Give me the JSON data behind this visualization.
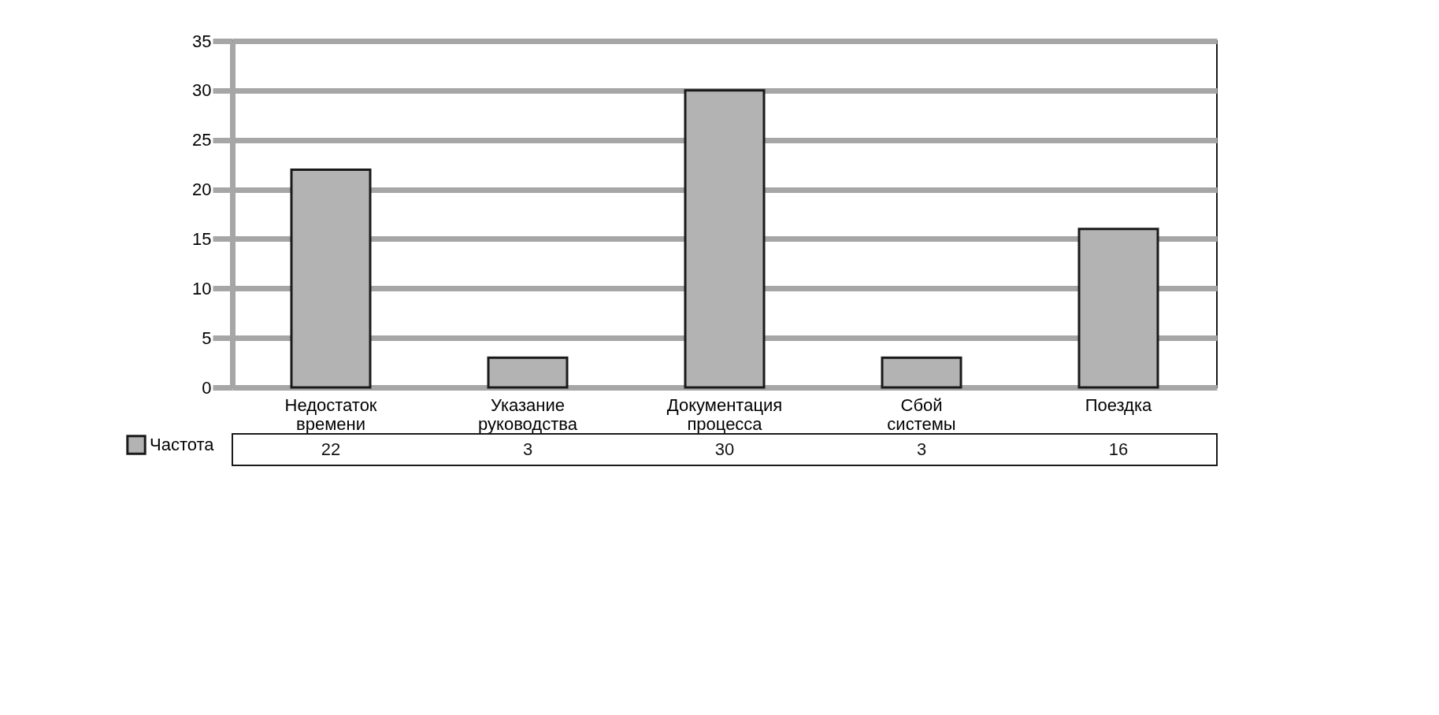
{
  "chart_data": {
    "type": "bar",
    "categories": [
      "Недостаток времени",
      "Указание руководства",
      "Документация процесса",
      "Сбой системы",
      "Поездка"
    ],
    "series": [
      {
        "name": "Частота",
        "color": "#b3b3b3",
        "values": [
          22,
          3,
          30,
          3,
          16
        ]
      }
    ],
    "ylim": [
      0,
      35
    ],
    "yticks": [
      0,
      5,
      10,
      15,
      20,
      25,
      30,
      35
    ],
    "grid": "y",
    "legend": "bottom left",
    "data_labels": true
  }
}
